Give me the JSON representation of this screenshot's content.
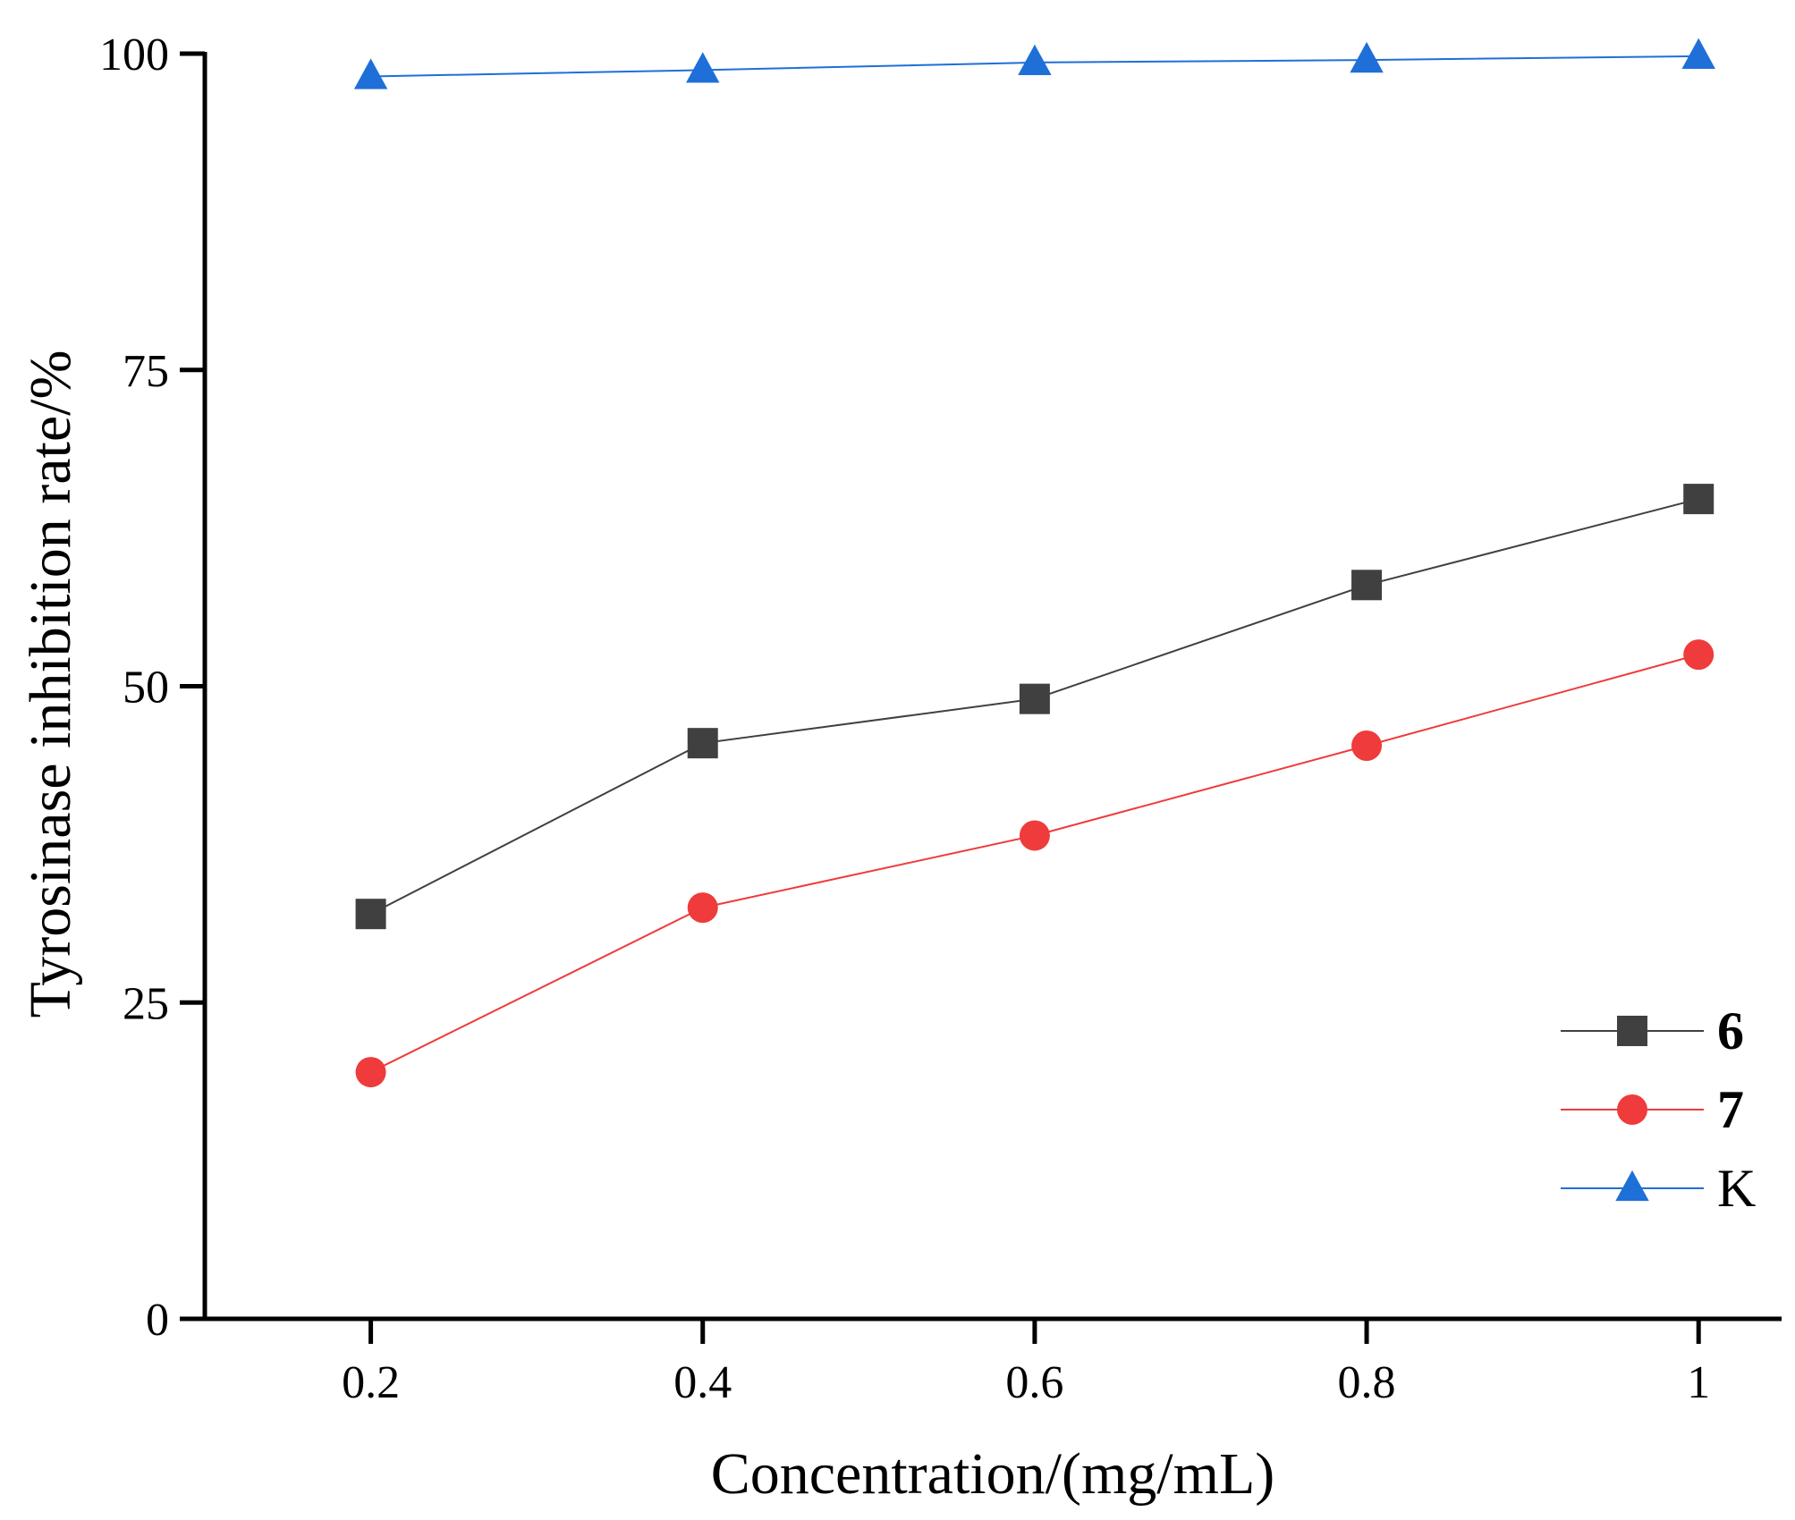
{
  "chart_data": {
    "type": "line",
    "title": "",
    "xlabel": "Concentration/(mg/mL)",
    "ylabel": "Tyrosinase inhibition rate/%",
    "x": [
      0.2,
      0.4,
      0.6,
      0.8,
      1.0
    ],
    "xlim": [
      0.1,
      1.05
    ],
    "ylim": [
      0,
      100
    ],
    "xticks": [
      0.2,
      0.4,
      0.6,
      0.8,
      1.0
    ],
    "xtick_labels": [
      "0.2",
      "0.4",
      "0.6",
      "0.8",
      "1"
    ],
    "yticks": [
      0,
      25,
      50,
      75,
      100
    ],
    "ytick_labels": [
      "0",
      "25",
      "50",
      "75",
      "100"
    ],
    "grid": false,
    "legend_position": "bottom-right",
    "series": [
      {
        "name": "6",
        "marker": "square",
        "color": "#404040",
        "bold": true,
        "values": [
          32.0,
          45.5,
          49.0,
          58.0,
          64.8
        ]
      },
      {
        "name": "7",
        "marker": "circle",
        "color": "#ef3b3b",
        "bold": true,
        "values": [
          19.5,
          32.5,
          38.2,
          45.3,
          52.5
        ]
      },
      {
        "name": "K",
        "marker": "triangle",
        "color": "#1f6fd8",
        "bold": false,
        "values": [
          98.2,
          98.7,
          99.3,
          99.5,
          99.8
        ]
      }
    ]
  }
}
